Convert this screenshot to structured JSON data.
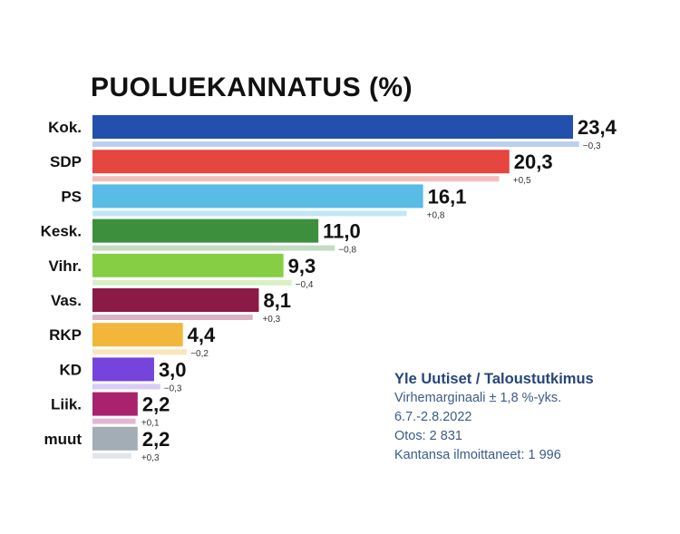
{
  "chart_data": {
    "type": "bar",
    "orientation": "horizontal",
    "title": "PUOLUEKANNATUS (%)",
    "xlabel": "",
    "ylabel": "",
    "xlim": [
      0,
      25
    ],
    "grid": false,
    "categories": [
      "Kok.",
      "SDP",
      "PS",
      "Kesk.",
      "Vihr.",
      "Vas.",
      "RKP",
      "KD",
      "Liik.",
      "muut"
    ],
    "values": [
      23.4,
      20.3,
      16.1,
      11.0,
      9.3,
      8.1,
      4.4,
      3.0,
      2.2,
      2.2
    ],
    "value_labels": [
      "23,4",
      "20,3",
      "16,1",
      "11,0",
      "9,3",
      "8,1",
      "4,4",
      "3,0",
      "2,2",
      "2,2"
    ],
    "change_values": [
      -0.3,
      0.5,
      0.8,
      -0.8,
      -0.4,
      0.3,
      -0.2,
      -0.3,
      0.1,
      0.3
    ],
    "change_labels": [
      "−0,3",
      "+0,5",
      "+0,8",
      "−0,8",
      "−0,4",
      "+0,3",
      "−0,2",
      "−0,3",
      "+0,1",
      "+0,3"
    ],
    "colors": [
      "#2350ad",
      "#e5463f",
      "#58bce6",
      "#3d8f3e",
      "#86cf45",
      "#8c1a47",
      "#f2b63a",
      "#7444dc",
      "#a8226d",
      "#a2adb6"
    ],
    "previous_colors": [
      "#bcd0ee",
      "#f4bdbb",
      "#c2e6f6",
      "#c3dcc3",
      "#d8f0c4",
      "#dcb3c6",
      "#fae6be",
      "#d7cdf4",
      "#e3b8cf",
      "#e3e6e9"
    ]
  },
  "source": {
    "title": "Yle Uutiset / Taloustutkimus",
    "lines": [
      "Virhemarginaali ± 1,8 %-yks.",
      "6.7.-2.8.2022",
      "Otos: 2 831",
      "Kantansa ilmoittaneet: 1 996"
    ]
  }
}
